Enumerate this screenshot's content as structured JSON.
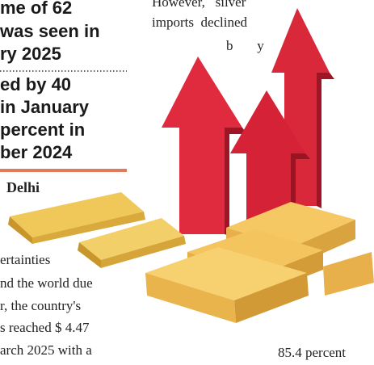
{
  "headline": [
    "me of 62",
    "was seen in",
    "ry 2025"
  ],
  "subheadline": [
    "ed by 40",
    "in January",
    "percent in",
    "ber 2024"
  ],
  "dateline": "Delhi",
  "body_lines": [
    "ertainties",
    "nd the world due",
    "r, the country's",
    "s reached $ 4.47",
    "arch 2025 with a"
  ],
  "right_column": [
    "However,   silver",
    "imports  declined",
    "b       y"
  ],
  "right_bottom": "85.4 percent"
}
